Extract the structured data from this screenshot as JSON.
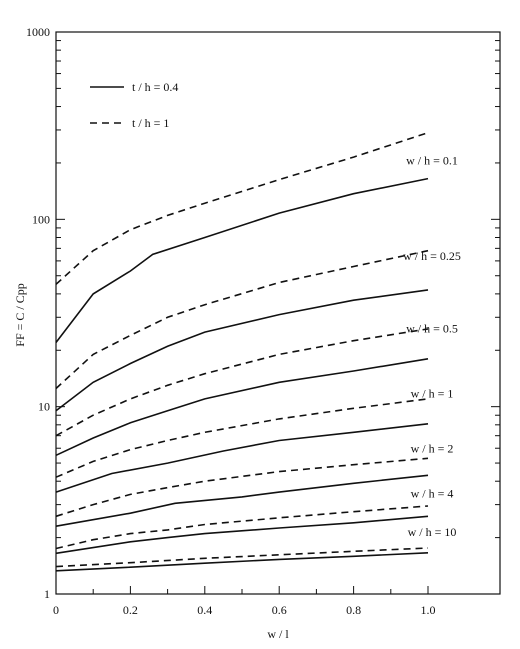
{
  "chart_data": {
    "type": "line",
    "xlabel": "w / l",
    "ylabel": "FF = C / Cpp",
    "xlim": [
      0,
      1.1
    ],
    "ylim": [
      1,
      1000
    ],
    "yscale": "log",
    "grid": false,
    "x_ticks": [
      "0",
      "0.2",
      "0.4",
      "0.6",
      "0.8",
      "1.0"
    ],
    "y_ticks": [
      "1",
      "10",
      "100",
      "1000"
    ],
    "legend": [
      {
        "label": "t / h = 0.4",
        "style": "solid"
      },
      {
        "label": "t / h = 1",
        "style": "dashed"
      }
    ],
    "legend_position": "top-left",
    "series": [
      {
        "label": "w / h = 0.1",
        "style": "dashed",
        "x": [
          0,
          0.1,
          0.2,
          0.3,
          0.4,
          0.6,
          0.8,
          1.0
        ],
        "y": [
          45,
          68,
          88,
          105,
          122,
          163,
          215,
          290
        ]
      },
      {
        "label": "w / h = 0.1",
        "style": "solid",
        "x": [
          0,
          0.1,
          0.2,
          0.26,
          0.4,
          0.6,
          0.8,
          1.0
        ],
        "y": [
          22,
          40,
          53,
          65,
          80,
          108,
          137,
          165
        ]
      },
      {
        "label": "w / h = 0.25",
        "style": "dashed",
        "x": [
          0,
          0.1,
          0.2,
          0.3,
          0.4,
          0.6,
          0.8,
          1.0
        ],
        "y": [
          12.5,
          19,
          24,
          30,
          35,
          46,
          56,
          68
        ]
      },
      {
        "label": "w / h = 0.25",
        "style": "solid",
        "x": [
          0,
          0.1,
          0.2,
          0.3,
          0.4,
          0.6,
          0.8,
          1.0
        ],
        "y": [
          9.5,
          13.5,
          17,
          21,
          25,
          31,
          37,
          42
        ]
      },
      {
        "label": "w / h = 0.5",
        "style": "dashed",
        "x": [
          0,
          0.1,
          0.2,
          0.3,
          0.4,
          0.6,
          0.8,
          1.0
        ],
        "y": [
          7,
          9,
          11,
          13,
          15,
          19,
          22.5,
          26
        ]
      },
      {
        "label": "w / h = 0.5",
        "style": "solid",
        "x": [
          0,
          0.1,
          0.2,
          0.3,
          0.4,
          0.6,
          0.8,
          1.0
        ],
        "y": [
          5.5,
          6.8,
          8.2,
          9.5,
          11,
          13.5,
          15.5,
          18
        ]
      },
      {
        "label": "w / h = 1",
        "style": "dashed",
        "x": [
          0,
          0.1,
          0.2,
          0.3,
          0.4,
          0.6,
          0.8,
          1.0
        ],
        "y": [
          4.2,
          5.1,
          5.9,
          6.6,
          7.3,
          8.6,
          9.8,
          11
        ]
      },
      {
        "label": "w / h = 1",
        "style": "solid",
        "x": [
          0,
          0.15,
          0.3,
          0.45,
          0.6,
          0.8,
          1.0
        ],
        "y": [
          3.5,
          4.4,
          5.0,
          5.8,
          6.6,
          7.3,
          8.1
        ]
      },
      {
        "label": "w / h = 2",
        "style": "dashed",
        "x": [
          0,
          0.1,
          0.2,
          0.3,
          0.4,
          0.6,
          0.8,
          1.0
        ],
        "y": [
          2.6,
          3.0,
          3.4,
          3.7,
          4.0,
          4.5,
          4.9,
          5.3
        ]
      },
      {
        "label": "w / h = 2",
        "style": "solid",
        "x": [
          0,
          0.2,
          0.32,
          0.5,
          0.6,
          0.8,
          1.0
        ],
        "y": [
          2.3,
          2.7,
          3.05,
          3.3,
          3.5,
          3.9,
          4.3
        ]
      },
      {
        "label": "w / h = 4",
        "style": "dashed",
        "x": [
          0,
          0.1,
          0.2,
          0.3,
          0.4,
          0.6,
          0.8,
          1.0
        ],
        "y": [
          1.75,
          1.95,
          2.1,
          2.2,
          2.35,
          2.55,
          2.75,
          2.95
        ]
      },
      {
        "label": "w / h = 4",
        "style": "solid",
        "x": [
          0,
          0.2,
          0.3,
          0.4,
          0.6,
          0.8,
          1.0
        ],
        "y": [
          1.65,
          1.9,
          2.0,
          2.1,
          2.25,
          2.4,
          2.6
        ]
      },
      {
        "label": "w / h = 10",
        "style": "dashed",
        "x": [
          0,
          0.2,
          0.4,
          0.6,
          0.8,
          1.0
        ],
        "y": [
          1.4,
          1.47,
          1.55,
          1.62,
          1.69,
          1.76
        ]
      },
      {
        "label": "w / h = 10",
        "style": "solid",
        "x": [
          0,
          0.2,
          0.4,
          0.6,
          0.8,
          1.0
        ],
        "y": [
          1.33,
          1.39,
          1.46,
          1.53,
          1.59,
          1.66
        ]
      }
    ],
    "curve_labels": [
      {
        "text": "w / h = 0.1",
        "at": [
          1.0,
          165
        ]
      },
      {
        "text": "w / h = 0.25",
        "at": [
          1.0,
          51
        ]
      },
      {
        "text": "w / h = 0.5",
        "at": [
          1.0,
          21
        ]
      },
      {
        "text": "w / h = 1",
        "at": [
          1.0,
          9.4
        ]
      },
      {
        "text": "w / h = 2",
        "at": [
          1.0,
          4.8
        ]
      },
      {
        "text": "w / h = 4",
        "at": [
          1.0,
          2.75
        ]
      },
      {
        "text": "w / h = 10",
        "at": [
          1.0,
          1.72
        ]
      }
    ]
  }
}
